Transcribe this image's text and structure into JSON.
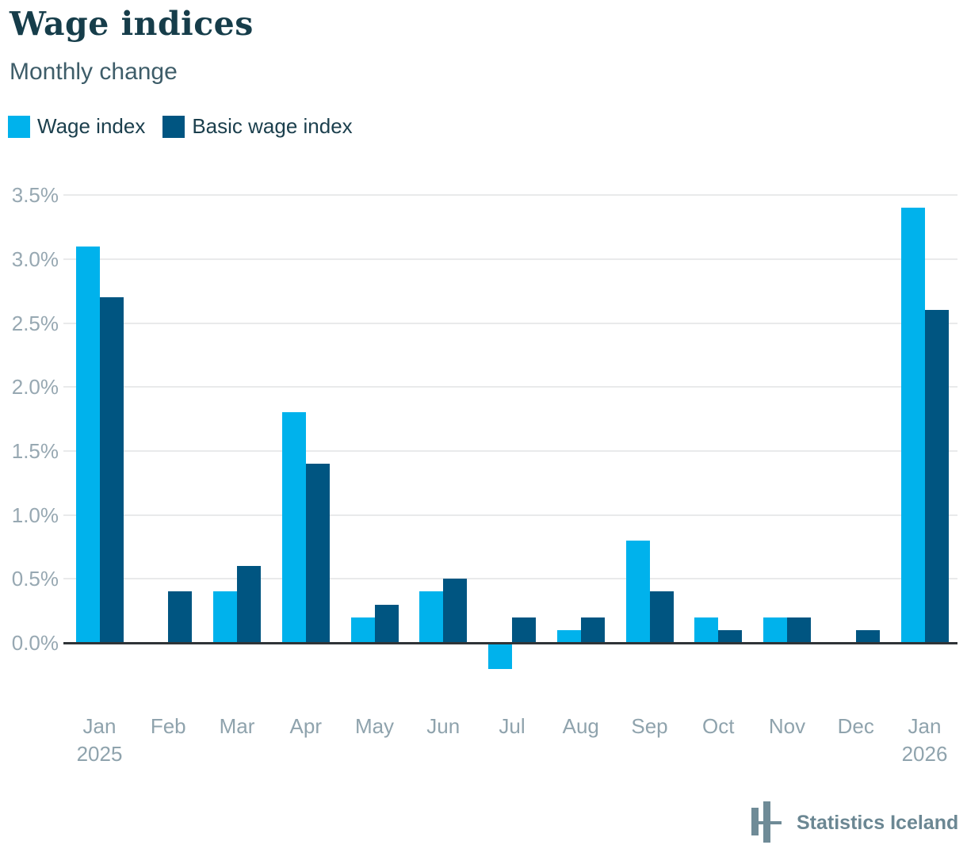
{
  "header": {
    "title": "Wage indices",
    "subtitle": "Monthly change"
  },
  "chart_data": {
    "type": "bar",
    "title": "Wage indices",
    "subtitle": "Monthly change",
    "categories": [
      "Jan",
      "Feb",
      "Mar",
      "Apr",
      "May",
      "Jun",
      "Jul",
      "Aug",
      "Sep",
      "Oct",
      "Nov",
      "Dec",
      "Jan"
    ],
    "year_labels": {
      "0": "2025",
      "12": "2026"
    },
    "series": [
      {
        "name": "Wage index",
        "color": "#00b2ec",
        "values": [
          3.1,
          0.0,
          0.4,
          1.8,
          0.2,
          0.4,
          -0.2,
          0.1,
          0.8,
          0.2,
          0.2,
          0.0,
          3.4
        ]
      },
      {
        "name": "Basic wage index",
        "color": "#005581",
        "values": [
          2.7,
          0.4,
          0.6,
          1.4,
          0.3,
          0.5,
          0.2,
          0.2,
          0.4,
          0.1,
          0.2,
          0.1,
          2.6
        ]
      }
    ],
    "y_ticks": [
      0.0,
      0.5,
      1.0,
      1.5,
      2.0,
      2.5,
      3.0,
      3.5
    ],
    "y_tick_suffix": "%",
    "ylim": [
      -0.35,
      3.5
    ],
    "xlabel": "",
    "ylabel": "",
    "grid": "horizontal",
    "legend_position": "top-left"
  },
  "footer": {
    "brand": "Statistics Iceland"
  }
}
